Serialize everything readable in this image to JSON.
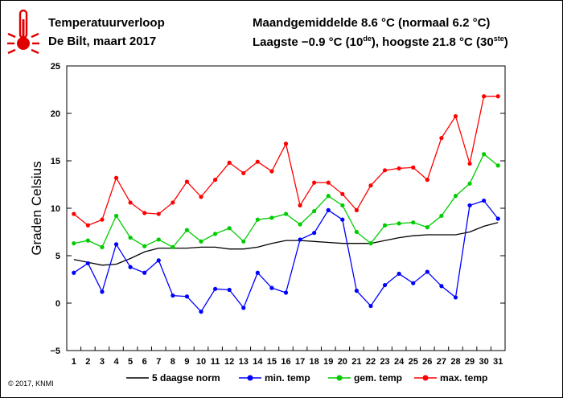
{
  "header": {
    "title": "Temperatuurverloop",
    "subtitle": "De Bilt, maart 2017",
    "stats_line1": "Maandgemiddelde 8.6 °C (normaal 6.2 °C)",
    "stats_line2_prefix": "Laagste −0.9 °C (10",
    "stats_line2_sup1": "de",
    "stats_line2_mid": "), hoogste 21.8 °C (30",
    "stats_line2_sup2": "ste",
    "stats_line2_suffix": ")"
  },
  "icon": "thermometer-icon",
  "copyright": "© 2017, KNMI",
  "colors": {
    "accent": "#e00000",
    "norm": "#000000",
    "min": "#0000ff",
    "avg": "#00cc00",
    "max": "#ff0000"
  },
  "chart_data": {
    "type": "line",
    "ylabel": "Graden Celsius",
    "ylim": [
      -5,
      25
    ],
    "yticks": [
      -5,
      0,
      5,
      10,
      15,
      20,
      25
    ],
    "ytick_labels": [
      "−5",
      "0",
      "5",
      "10",
      "15",
      "20",
      "25"
    ],
    "x": [
      1,
      2,
      3,
      4,
      5,
      6,
      7,
      8,
      9,
      10,
      11,
      12,
      13,
      14,
      15,
      16,
      17,
      18,
      19,
      20,
      21,
      22,
      23,
      24,
      25,
      26,
      27,
      28,
      29,
      30,
      31
    ],
    "grid": false,
    "legend_position": "bottom",
    "series": [
      {
        "name": "5 daagse norm",
        "markers": false,
        "values": [
          4.6,
          4.3,
          4.0,
          4.1,
          4.7,
          5.4,
          5.8,
          5.8,
          5.8,
          5.9,
          5.9,
          5.7,
          5.7,
          5.9,
          6.3,
          6.6,
          6.6,
          6.5,
          6.4,
          6.3,
          6.3,
          6.3,
          6.6,
          6.9,
          7.1,
          7.2,
          7.2,
          7.2,
          7.5,
          8.1,
          8.5
        ]
      },
      {
        "name": "min. temp",
        "markers": true,
        "values": [
          3.2,
          4.2,
          1.2,
          6.2,
          3.8,
          3.2,
          4.5,
          0.8,
          0.7,
          -0.9,
          1.5,
          1.4,
          -0.5,
          3.2,
          1.6,
          1.1,
          6.7,
          7.4,
          9.8,
          8.8,
          1.3,
          -0.3,
          1.9,
          3.1,
          2.1,
          3.3,
          1.8,
          0.6,
          10.3,
          10.8,
          8.9
        ]
      },
      {
        "name": "gem. temp",
        "markers": true,
        "values": [
          6.3,
          6.6,
          5.9,
          9.2,
          6.9,
          6.0,
          6.7,
          5.9,
          7.7,
          6.5,
          7.3,
          7.9,
          6.5,
          8.8,
          9.0,
          9.4,
          8.3,
          9.7,
          11.3,
          10.3,
          7.5,
          6.3,
          8.2,
          8.4,
          8.5,
          8.0,
          9.2,
          11.3,
          12.6,
          15.7,
          14.5
        ]
      },
      {
        "name": "max. temp",
        "markers": true,
        "values": [
          9.4,
          8.2,
          8.8,
          13.2,
          10.6,
          9.5,
          9.4,
          10.6,
          12.8,
          11.2,
          13.0,
          14.8,
          13.7,
          14.9,
          13.9,
          16.8,
          10.3,
          12.7,
          12.7,
          11.5,
          9.8,
          12.4,
          14.0,
          14.2,
          14.3,
          13.0,
          17.4,
          19.7,
          14.7,
          21.8,
          21.8
        ]
      }
    ]
  }
}
